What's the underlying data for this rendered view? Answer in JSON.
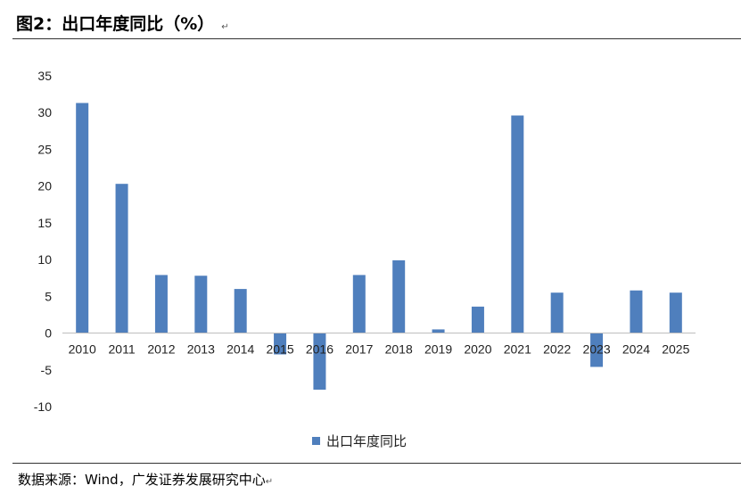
{
  "figure": {
    "title": "图2：出口年度同比（%）",
    "title_mark": "↵",
    "source": "数据来源：Wind，广发证券发展研究中心",
    "source_mark": "↵"
  },
  "chart_data": {
    "type": "bar",
    "categories": [
      "2010",
      "2011",
      "2012",
      "2013",
      "2014",
      "2015",
      "2016",
      "2017",
      "2018",
      "2019",
      "2020",
      "2021",
      "2022",
      "2023",
      "2024",
      "2025"
    ],
    "series": [
      {
        "name": "出口年度同比",
        "values": [
          31.3,
          20.3,
          7.9,
          7.8,
          6.0,
          -2.9,
          -7.7,
          7.9,
          9.9,
          0.5,
          3.6,
          29.6,
          5.5,
          -4.6,
          5.8,
          5.5
        ]
      }
    ],
    "yticks": [
      35,
      30,
      25,
      20,
      15,
      10,
      5,
      0,
      -5,
      -10
    ],
    "ylim": [
      -10,
      35
    ],
    "grid": false,
    "legend": "bottom-center",
    "colors": {
      "bar": "#4f7fbd"
    }
  }
}
